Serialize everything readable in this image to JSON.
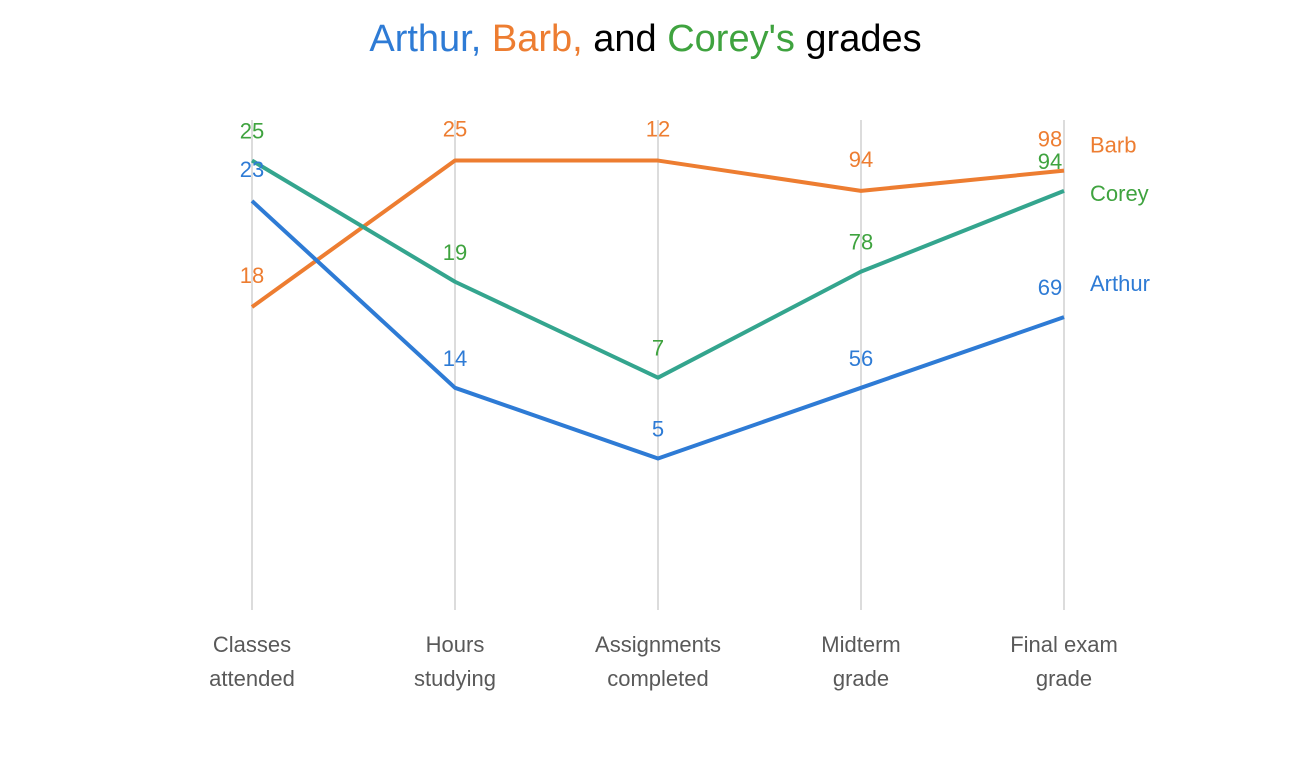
{
  "chart_data": {
    "type": "line",
    "title": {
      "part1": "Arthur,",
      "part2": "Barb,",
      "part3": "and",
      "part4": "Corey's",
      "part5": "grades"
    },
    "categories": [
      [
        "Classes",
        "attended"
      ],
      [
        "Hours",
        "studying"
      ],
      [
        "Assignments",
        "completed"
      ],
      [
        "Midterm",
        "grade"
      ],
      [
        "Final exam",
        "grade"
      ]
    ],
    "y_positions": [
      0.82,
      0.89,
      0.89,
      0.83,
      0.87
    ],
    "series": [
      {
        "name": "Barb",
        "color": "#ED7D31",
        "labels": [
          "18",
          "25",
          "12",
          "94",
          "98"
        ],
        "values": [
          0.6,
          0.89,
          0.89,
          0.83,
          0.87
        ]
      },
      {
        "name": "Corey",
        "color": "#3FA33F",
        "line_color": "#34A58E",
        "labels": [
          "25",
          "19",
          "7",
          "78",
          "94"
        ],
        "values": [
          0.89,
          0.65,
          0.46,
          0.67,
          0.83
        ]
      },
      {
        "name": "Arthur",
        "color": "#2E7BD5",
        "labels": [
          "23",
          "14",
          "5",
          "56",
          "69"
        ],
        "values": [
          0.81,
          0.44,
          0.3,
          0.44,
          0.58
        ]
      }
    ],
    "grid": false,
    "legend": "right-end-labels"
  }
}
